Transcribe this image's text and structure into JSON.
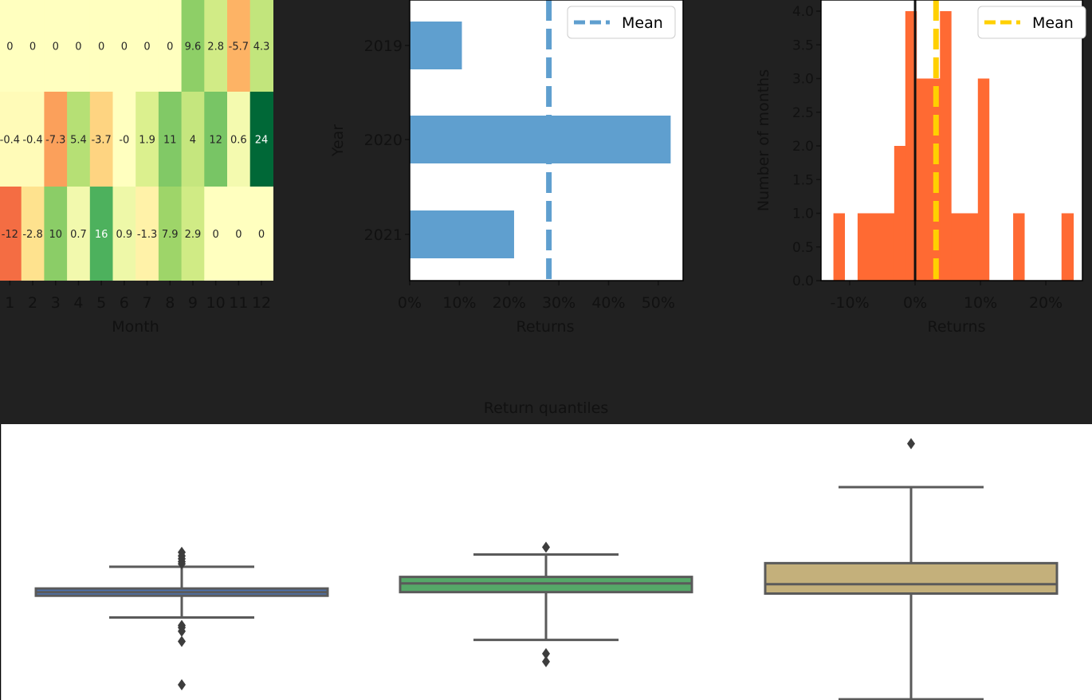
{
  "colors": {
    "page_bg": "#212121",
    "label_text": "#111111",
    "bar_color": "#5f9fcf",
    "hist_color": "#ff6a33",
    "hist_mean_color": "#ffd000",
    "box_colors": [
      "#4c72b0",
      "#55a868",
      "#c4b07b"
    ]
  },
  "chart_data": [
    {
      "type": "heatmap",
      "xlabel": "Month",
      "ylabel": "",
      "columns": [
        "1",
        "2",
        "3",
        "4",
        "5",
        "6",
        "7",
        "8",
        "9",
        "10",
        "11",
        "12"
      ],
      "rows": [
        {
          "values": [
            0,
            0,
            0,
            0,
            0,
            0,
            0,
            0,
            9.6,
            2.8,
            -5.7,
            4.3
          ],
          "labels": [
            "0",
            "0",
            "0",
            "0",
            "0",
            "0",
            "0",
            "0",
            "9.6",
            "2.8",
            "-5.7",
            "4.3"
          ]
        },
        {
          "values": [
            -0.4,
            -0.4,
            -7.3,
            5.4,
            -3.7,
            0,
            1.9,
            11,
            4,
            12,
            0.6,
            24
          ],
          "labels": [
            "-0.4",
            "-0.4",
            "-7.3",
            "5.4",
            "-3.7",
            "-0",
            "1.9",
            "11",
            "4",
            "12",
            "0.6",
            "24"
          ]
        },
        {
          "values": [
            -12,
            -2.8,
            10,
            0.7,
            16,
            0.9,
            -1.3,
            7.9,
            2.9,
            0,
            0,
            0
          ],
          "labels": [
            "-12",
            "-2.8",
            "10",
            "0.7",
            "16",
            "0.9",
            "-1.3",
            "7.9",
            "2.9",
            "0",
            "0",
            "0"
          ]
        }
      ]
    },
    {
      "type": "bar",
      "orientation": "horizontal",
      "categories": [
        "2019",
        "2020",
        "2021"
      ],
      "values": [
        10.5,
        52.5,
        21
      ],
      "mean": 28,
      "xlim": [
        0,
        55
      ],
      "xticks": [
        "0%",
        "10%",
        "20%",
        "30%",
        "40%",
        "50%"
      ],
      "xlabel": "Returns",
      "ylabel": "Year",
      "legend": {
        "label": "Mean",
        "position": "top-right"
      }
    },
    {
      "type": "histogram",
      "bins": [
        {
          "x0": -12.5,
          "x1": -10.8,
          "count": 1
        },
        {
          "x0": -8.8,
          "x1": -3.2,
          "count": 1
        },
        {
          "x0": -3.2,
          "x1": -1.5,
          "count": 2
        },
        {
          "x0": -1.5,
          "x1": 0.2,
          "count": 4
        },
        {
          "x0": 0.2,
          "x1": 2.0,
          "count": 3
        },
        {
          "x0": 2.0,
          "x1": 3.8,
          "count": 3
        },
        {
          "x0": 3.8,
          "x1": 5.5,
          "count": 4
        },
        {
          "x0": 5.5,
          "x1": 9.6,
          "count": 1
        },
        {
          "x0": 9.6,
          "x1": 11.3,
          "count": 3
        },
        {
          "x0": 15.0,
          "x1": 16.7,
          "count": 1
        },
        {
          "x0": 22.4,
          "x1": 24.2,
          "count": 1
        }
      ],
      "zero_line": 0,
      "mean": 3.2,
      "xlim": [
        -14.4,
        25.6
      ],
      "ylim": [
        0,
        4.0
      ],
      "xticks": [
        -10,
        0,
        10,
        20
      ],
      "xtick_labels": [
        "-10%",
        "0%",
        "10%",
        "20%"
      ],
      "yticks": [
        "0.0",
        "0.5",
        "1.0",
        "1.5",
        "2.0",
        "2.5",
        "3.0",
        "3.5",
        "4.0"
      ],
      "xlabel": "Returns",
      "ylabel": "Number of months",
      "legend": {
        "label": "Mean",
        "position": "top-right"
      }
    },
    {
      "type": "box",
      "title": "Return quantiles",
      "boxes": [
        {
          "q1": -0.5,
          "median": 0,
          "q3": 0.5,
          "whisker_low": -3.5,
          "whisker_high": 3.5,
          "outliers": [
            5.5,
            5.0,
            4.6,
            4.2,
            3.9,
            -4.6,
            -4.9,
            -5.4,
            -6.8,
            -12.8
          ]
        },
        {
          "q1": 0,
          "median": 1.2,
          "q3": 2.1,
          "whisker_low": -6.6,
          "whisker_high": 5.2,
          "outliers": [
            6.2,
            -8.5,
            -9.6
          ]
        },
        {
          "q1": -0.2,
          "median": 1.1,
          "q3": 4.0,
          "whisker_low": -14.8,
          "whisker_high": 14.5,
          "outliers": [
            20.5
          ]
        }
      ],
      "ylim": [
        -14.9,
        23.2
      ]
    }
  ]
}
